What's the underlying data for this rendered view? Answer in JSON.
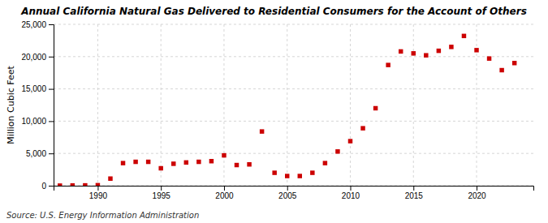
{
  "chart_data": {
    "type": "scatter",
    "title": "Annual California Natural Gas Delivered to Residential Consumers for the Account of Others",
    "ylabel": "Million Cubic Feet",
    "source": "Source: U.S. Energy Information Administration",
    "x": [
      1987,
      1988,
      1989,
      1990,
      1991,
      1992,
      1993,
      1994,
      1995,
      1996,
      1997,
      1998,
      1999,
      2000,
      2001,
      2002,
      2003,
      2004,
      2005,
      2006,
      2007,
      2008,
      2009,
      2010,
      2011,
      2012,
      2013,
      2014,
      2015,
      2016,
      2017,
      2018,
      2019,
      2020,
      2021,
      2022,
      2023
    ],
    "values": [
      10,
      30,
      50,
      80,
      1100,
      3500,
      3700,
      3700,
      2700,
      3400,
      3600,
      3700,
      3800,
      4700,
      3200,
      3300,
      8400,
      2000,
      1500,
      1500,
      2000,
      3500,
      5300,
      6900,
      8900,
      12000,
      18700,
      20800,
      20500,
      20200,
      20900,
      21500,
      23200,
      21000,
      19700,
      17900,
      19000
    ],
    "color": "#cc0000",
    "marker": "square",
    "xlim": [
      1986.5,
      2024.5
    ],
    "xticks": [
      1990,
      1995,
      2000,
      2005,
      2010,
      2015,
      2020
    ],
    "ylim": [
      0,
      25000
    ],
    "yticks": [
      0,
      {
        "value": 5000,
        "label": "5,000"
      },
      {
        "value": 10000,
        "label": "10,000"
      },
      {
        "value": 15000,
        "label": "15,000"
      },
      {
        "value": 20000,
        "label": "20,000"
      },
      {
        "value": 25000,
        "label": "25,000"
      }
    ],
    "grid": true
  }
}
